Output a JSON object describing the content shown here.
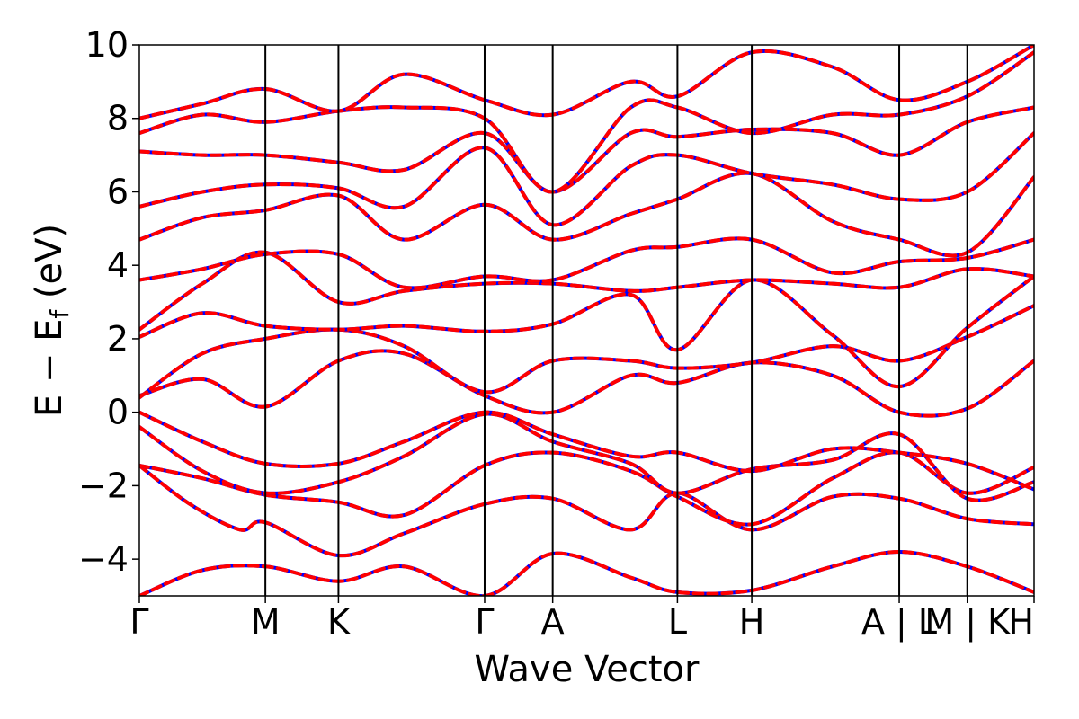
{
  "chart_data": {
    "type": "line",
    "xlabel": "Wave Vector",
    "ylabel": "E − E_f (eV)",
    "ylabel_parts": {
      "pre": "E − E",
      "sub": "f",
      "post": " (eV)"
    },
    "ylim": [
      -5,
      10
    ],
    "yticks": [
      -4,
      -2,
      0,
      2,
      4,
      6,
      8,
      10
    ],
    "ytick_labels": [
      "−4",
      "−2",
      "0",
      "2",
      "4",
      "6",
      "8",
      "10"
    ],
    "kpath": {
      "positions": [
        0,
        1.0,
        1.58,
        2.74,
        3.28,
        4.27,
        4.86,
        6.03,
        6.57,
        7.1
      ],
      "labels": [
        "Γ",
        "M",
        "K",
        "Γ",
        "A",
        "L",
        "H",
        "A | L",
        "M | K",
        "H"
      ],
      "xlim": [
        0,
        7.1
      ]
    },
    "series_styles": [
      {
        "color": "#0000ff",
        "dash": "none"
      },
      {
        "color": "#ff0000",
        "dash": "dashed"
      }
    ],
    "bands": [
      {
        "x": [
          0,
          0.5,
          1.0,
          1.58,
          2.1,
          2.74,
          3.28,
          3.9,
          4.27,
          4.86,
          5.5,
          6.03,
          6.57,
          7.1
        ],
        "y": [
          -5.0,
          -4.3,
          -4.2,
          -4.6,
          -4.2,
          -5.0,
          -3.85,
          -4.5,
          -4.9,
          -4.85,
          -4.2,
          -3.8,
          -4.2,
          -4.9
        ]
      },
      {
        "x": [
          0,
          0.4,
          0.8,
          1.0,
          1.58,
          2.1,
          2.74,
          3.28,
          3.9,
          4.27,
          4.86,
          5.5,
          6.03,
          6.57,
          7.1
        ],
        "y": [
          -1.45,
          -2.5,
          -3.2,
          -3.0,
          -3.9,
          -3.3,
          -2.5,
          -2.35,
          -3.2,
          -2.2,
          -3.2,
          -2.3,
          -2.35,
          -2.9,
          -3.05
        ]
      },
      {
        "x": [
          0,
          0.5,
          1.0,
          1.58,
          2.1,
          2.74,
          3.28,
          3.9,
          4.27,
          4.86,
          5.5,
          6.03,
          6.57,
          7.1
        ],
        "y": [
          -1.45,
          -1.8,
          -2.25,
          -2.45,
          -2.8,
          -1.45,
          -1.1,
          -1.6,
          -2.3,
          -3.05,
          -1.8,
          -1.1,
          -2.2,
          -1.5
        ]
      },
      {
        "x": [
          0,
          0.5,
          1.0,
          1.58,
          2.1,
          2.74,
          3.28,
          3.9,
          4.27,
          4.86,
          5.5,
          6.03,
          6.57,
          7.1
        ],
        "y": [
          -0.4,
          -1.6,
          -2.2,
          -1.9,
          -1.2,
          -0.05,
          -0.8,
          -1.4,
          -2.2,
          -1.55,
          -1.3,
          -0.6,
          -2.35,
          -1.9
        ]
      },
      {
        "x": [
          0,
          0.5,
          1.0,
          1.58,
          2.1,
          2.74,
          3.28,
          3.9,
          4.27,
          4.86,
          5.5,
          6.03,
          6.57,
          7.1
        ],
        "y": [
          0.0,
          -0.8,
          -1.4,
          -1.4,
          -0.8,
          0.0,
          -0.6,
          -1.2,
          -1.1,
          -1.6,
          -1.0,
          -1.1,
          -1.4,
          -2.1
        ]
      },
      {
        "x": [
          0,
          0.5,
          1.0,
          1.58,
          2.1,
          2.74,
          3.28,
          3.9,
          4.27,
          4.86,
          5.5,
          6.03,
          6.57,
          7.1
        ],
        "y": [
          0.45,
          0.9,
          0.15,
          1.4,
          1.6,
          0.45,
          0.0,
          1.0,
          0.8,
          1.35,
          1.0,
          0.0,
          0.1,
          1.4
        ]
      },
      {
        "x": [
          0,
          0.5,
          1.0,
          1.58,
          2.1,
          2.74,
          3.28,
          3.9,
          4.27,
          4.86,
          5.5,
          6.03,
          6.57,
          7.1
        ],
        "y": [
          0.4,
          1.6,
          2.0,
          2.25,
          1.8,
          0.55,
          1.4,
          1.4,
          1.2,
          1.35,
          1.8,
          1.4,
          2.05,
          2.9
        ]
      },
      {
        "x": [
          0,
          0.5,
          1.0,
          1.58,
          2.1,
          2.74,
          3.28,
          3.9,
          4.27,
          4.86,
          5.5,
          6.03,
          6.57,
          7.1
        ],
        "y": [
          2.05,
          2.7,
          2.35,
          2.25,
          2.35,
          2.2,
          2.4,
          3.2,
          1.7,
          3.6,
          2.1,
          0.7,
          2.3,
          3.7
        ]
      },
      {
        "x": [
          0,
          0.5,
          1.0,
          1.58,
          2.1,
          2.74,
          3.28,
          3.9,
          4.27,
          4.86,
          5.5,
          6.03,
          6.57,
          7.1
        ],
        "y": [
          2.25,
          3.5,
          4.35,
          3.0,
          3.3,
          3.5,
          3.5,
          3.3,
          3.4,
          3.6,
          3.5,
          3.4,
          3.9,
          3.7
        ]
      },
      {
        "x": [
          0,
          0.5,
          1.0,
          1.58,
          2.1,
          2.74,
          3.28,
          3.9,
          4.27,
          4.86,
          5.5,
          6.03,
          6.57,
          7.1
        ],
        "y": [
          3.6,
          3.9,
          4.3,
          4.3,
          3.4,
          3.7,
          3.6,
          4.4,
          4.5,
          4.7,
          3.8,
          4.1,
          4.2,
          4.7
        ]
      },
      {
        "x": [
          0,
          0.5,
          1.0,
          1.58,
          2.1,
          2.74,
          3.28,
          3.9,
          4.27,
          4.86,
          5.5,
          6.03,
          6.57,
          7.1
        ],
        "y": [
          4.7,
          5.3,
          5.5,
          5.9,
          4.7,
          5.65,
          4.7,
          5.4,
          5.8,
          6.5,
          5.2,
          4.7,
          4.35,
          6.4
        ]
      },
      {
        "x": [
          0,
          0.5,
          1.0,
          1.58,
          2.1,
          2.74,
          3.28,
          3.9,
          4.27,
          4.86,
          5.5,
          6.03,
          6.57,
          7.1
        ],
        "y": [
          5.6,
          6.0,
          6.2,
          6.1,
          5.6,
          7.2,
          5.1,
          6.7,
          7.0,
          6.5,
          6.2,
          5.8,
          6.0,
          7.6
        ]
      },
      {
        "x": [
          0,
          0.5,
          1.0,
          1.58,
          2.1,
          2.74,
          3.28,
          3.9,
          4.27,
          4.86,
          5.5,
          6.03,
          6.57,
          7.1
        ],
        "y": [
          7.1,
          7.0,
          7.0,
          6.8,
          6.6,
          7.6,
          6.0,
          7.6,
          7.5,
          7.7,
          7.6,
          7.0,
          7.9,
          8.3
        ]
      },
      {
        "x": [
          0,
          0.5,
          1.0,
          1.58,
          2.1,
          2.74,
          3.28,
          3.9,
          4.27,
          4.86,
          5.5,
          6.03,
          6.57,
          7.1
        ],
        "y": [
          7.6,
          8.1,
          7.9,
          8.2,
          8.3,
          8.0,
          6.0,
          8.3,
          8.3,
          7.6,
          8.1,
          8.1,
          8.6,
          9.8
        ]
      },
      {
        "x": [
          0,
          0.5,
          1.0,
          1.58,
          2.1,
          2.74,
          3.28,
          3.9,
          4.27,
          4.86,
          5.5,
          6.03,
          6.57,
          7.1
        ],
        "y": [
          8.0,
          8.4,
          8.8,
          8.2,
          9.2,
          8.5,
          8.1,
          9.0,
          8.6,
          9.8,
          9.4,
          8.5,
          9.0,
          10.0
        ]
      }
    ]
  }
}
